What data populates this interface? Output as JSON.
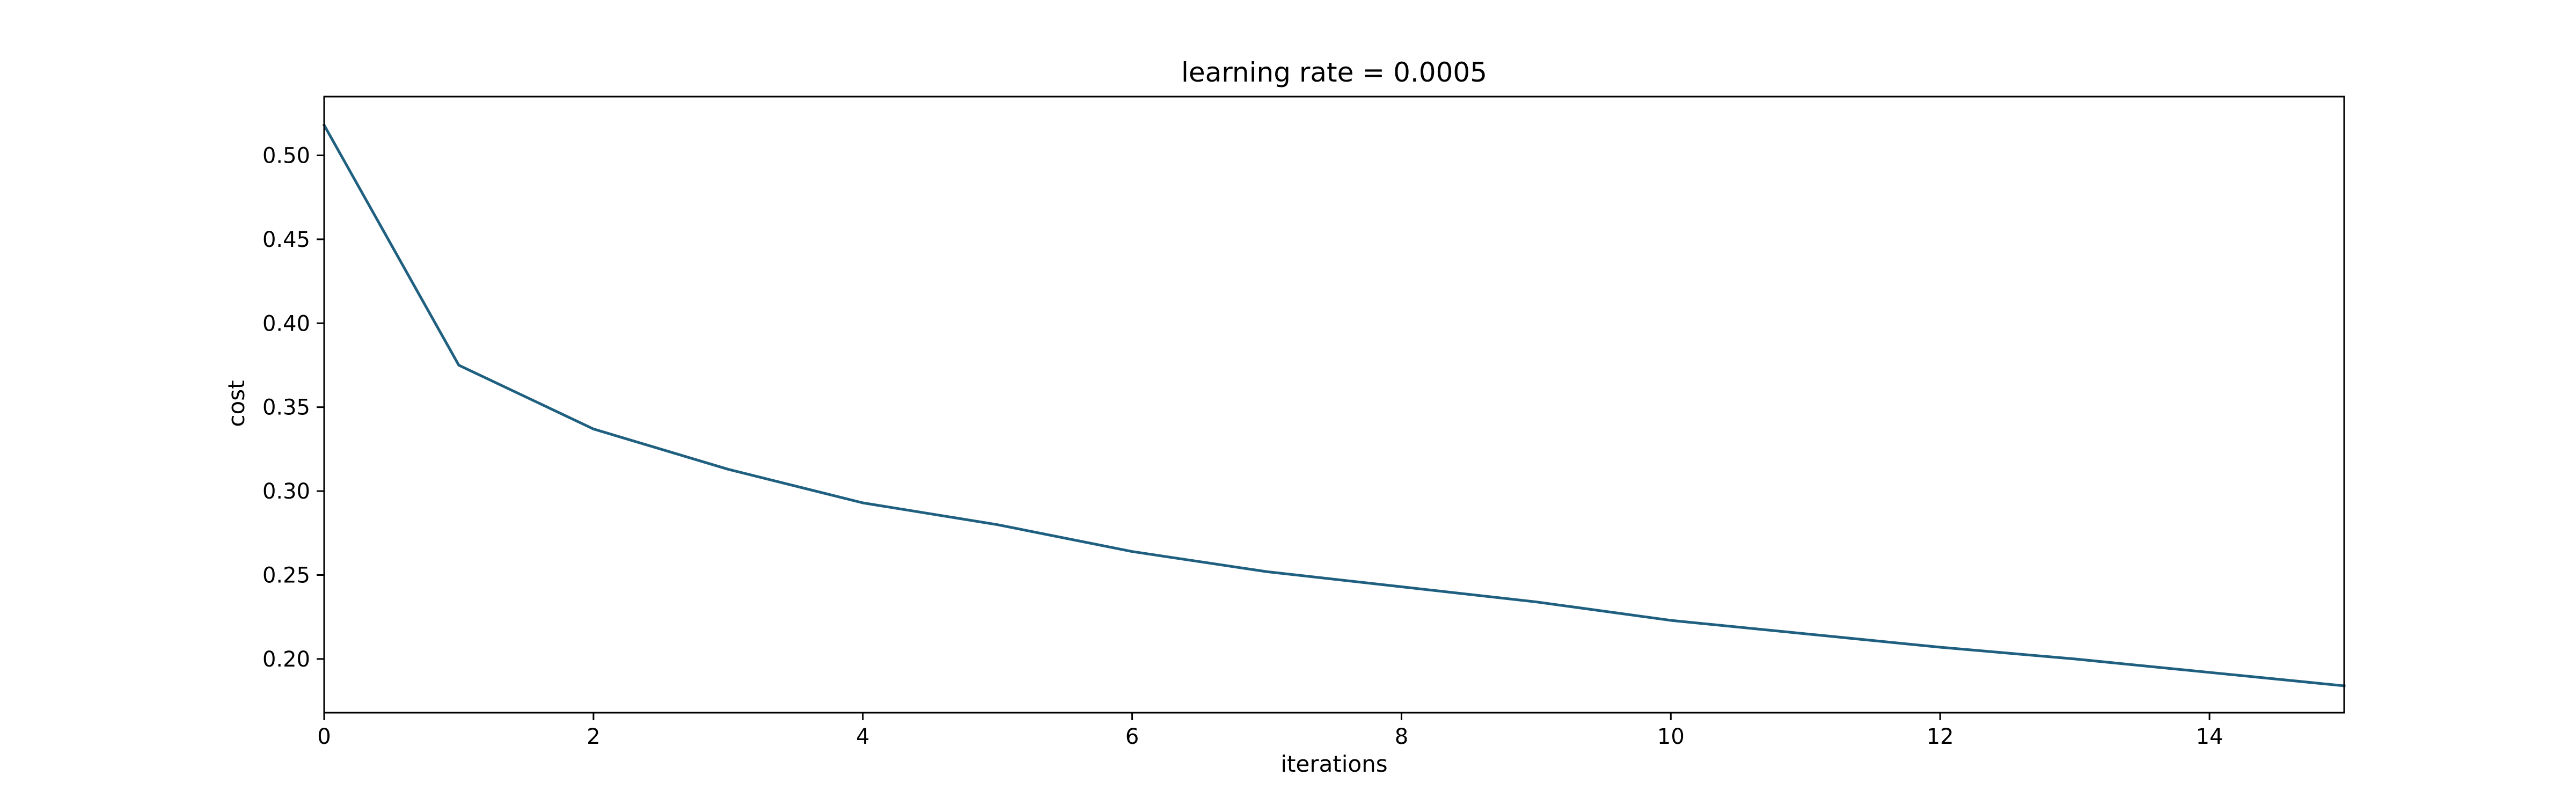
{
  "chart_data": {
    "type": "line",
    "title": "learning rate = 0.0005",
    "xlabel": "iterations",
    "ylabel": "cost",
    "xlim": [
      0,
      15
    ],
    "ylim": [
      0.168,
      0.535
    ],
    "grid": false,
    "xticks": [
      0,
      2,
      4,
      6,
      8,
      10,
      12,
      14
    ],
    "xtick_labels": [
      "0",
      "2",
      "4",
      "6",
      "8",
      "10",
      "12",
      "14"
    ],
    "yticks": [
      0.2,
      0.25,
      0.3,
      0.35,
      0.4,
      0.45,
      0.5
    ],
    "ytick_labels": [
      "0.20",
      "0.25",
      "0.30",
      "0.35",
      "0.40",
      "0.45",
      "0.50"
    ],
    "series": [
      {
        "color": "#1f5f80",
        "x": [
          0,
          1,
          2,
          3,
          4,
          5,
          6,
          7,
          8,
          9,
          10,
          11,
          12,
          13,
          14,
          15
        ],
        "y": [
          0.518,
          0.375,
          0.337,
          0.313,
          0.293,
          0.28,
          0.264,
          0.252,
          0.243,
          0.234,
          0.223,
          0.215,
          0.207,
          0.2,
          0.192,
          0.184
        ]
      }
    ]
  }
}
